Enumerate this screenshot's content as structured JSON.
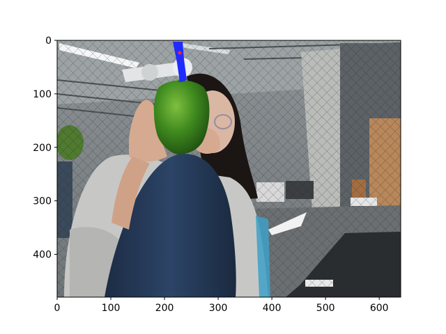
{
  "plot": {
    "x_ticks": [
      "0",
      "100",
      "200",
      "300",
      "400",
      "500",
      "600"
    ],
    "y_ticks": [
      "0",
      "100",
      "200",
      "300",
      "400"
    ],
    "xlim": [
      0,
      640
    ],
    "ylim": [
      480,
      0
    ],
    "colors": {
      "frame": "#000000",
      "background": "#ffffff",
      "overlay_blue": "#1f2bff",
      "overlay_red": "#ff2a2a"
    }
  },
  "scene": {
    "subjects": [
      "person seated in gray hoodie and jeans",
      "green bell pepper held up",
      "robot arm gripper (blue highlighted)"
    ]
  }
}
